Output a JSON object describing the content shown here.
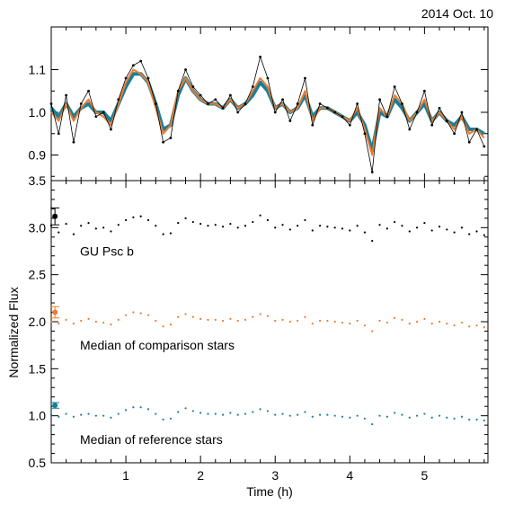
{
  "header": {
    "date_label": "2014 Oct. 10"
  },
  "colors": {
    "gu_psc_b": "#000000",
    "comparison": "#f07a2c",
    "reference": "#1a7f99",
    "axis": "#000000",
    "background": "#ffffff"
  },
  "chart_data": [
    {
      "panel": "top",
      "type": "line",
      "xlim": [
        0,
        5.85
      ],
      "ylim": [
        0.84,
        1.2
      ],
      "y_ticks": [
        0.9,
        1.0,
        1.1
      ],
      "y_tick_labels": [
        "0.9",
        "1.0",
        "1.1"
      ],
      "grid": false,
      "series": [
        {
          "name": "GU Psc b",
          "style": "thin line with point markers",
          "x": [
            0.0,
            0.1,
            0.2,
            0.3,
            0.4,
            0.5,
            0.6,
            0.7,
            0.8,
            0.9,
            1.0,
            1.1,
            1.2,
            1.3,
            1.4,
            1.5,
            1.6,
            1.7,
            1.8,
            1.9,
            2.0,
            2.1,
            2.2,
            2.3,
            2.4,
            2.5,
            2.6,
            2.7,
            2.8,
            2.9,
            3.0,
            3.1,
            3.2,
            3.3,
            3.4,
            3.5,
            3.6,
            3.7,
            3.8,
            3.9,
            4.0,
            4.1,
            4.2,
            4.3,
            4.4,
            4.5,
            4.6,
            4.7,
            4.8,
            4.9,
            5.0,
            5.1,
            5.2,
            5.3,
            5.4,
            5.5,
            5.6,
            5.7,
            5.8
          ],
          "y": [
            1.02,
            0.95,
            1.04,
            0.93,
            1.02,
            1.05,
            0.99,
            1.0,
            0.96,
            1.03,
            1.08,
            1.11,
            1.12,
            1.08,
            1.02,
            0.93,
            0.94,
            1.05,
            1.1,
            1.06,
            1.04,
            1.02,
            1.03,
            1.01,
            1.04,
            1.0,
            1.02,
            1.06,
            1.13,
            1.08,
            1.0,
            1.03,
            0.98,
            1.02,
            1.08,
            0.97,
            1.02,
            1.01,
            1.0,
            0.99,
            0.97,
            1.02,
            0.95,
            0.86,
            1.03,
            0.99,
            1.06,
            1.02,
            0.96,
            1.0,
            1.05,
            0.97,
            1.01,
            0.98,
            0.95,
            1.0,
            0.93,
            0.96,
            0.92
          ]
        },
        {
          "name": "Median of comparison stars",
          "style": "line",
          "x": [
            0.0,
            0.1,
            0.2,
            0.3,
            0.4,
            0.5,
            0.6,
            0.7,
            0.8,
            0.9,
            1.0,
            1.1,
            1.2,
            1.3,
            1.4,
            1.5,
            1.6,
            1.7,
            1.8,
            1.9,
            2.0,
            2.1,
            2.2,
            2.3,
            2.4,
            2.5,
            2.6,
            2.7,
            2.8,
            2.9,
            3.0,
            3.1,
            3.2,
            3.3,
            3.4,
            3.5,
            3.6,
            3.7,
            3.8,
            3.9,
            4.0,
            4.1,
            4.2,
            4.3,
            4.4,
            4.5,
            4.6,
            4.7,
            4.8,
            4.9,
            5.0,
            5.1,
            5.2,
            5.3,
            5.4,
            5.5,
            5.6,
            5.7,
            5.8
          ],
          "y": [
            1.0,
            0.98,
            1.02,
            0.98,
            1.01,
            1.03,
            1.0,
            0.99,
            0.97,
            1.02,
            1.07,
            1.1,
            1.09,
            1.07,
            1.01,
            0.95,
            0.97,
            1.05,
            1.08,
            1.05,
            1.03,
            1.02,
            1.02,
            1.01,
            1.03,
            1.01,
            1.02,
            1.05,
            1.08,
            1.06,
            1.01,
            1.02,
            1.0,
            1.01,
            1.05,
            0.98,
            1.01,
            1.01,
            1.0,
            0.99,
            0.98,
            1.01,
            0.96,
            0.9,
            1.01,
            0.99,
            1.04,
            1.02,
            0.98,
            1.0,
            1.03,
            0.98,
            1.0,
            0.98,
            0.96,
            0.99,
            0.95,
            0.96,
            0.94
          ]
        },
        {
          "name": "Median of reference stars",
          "style": "thick line",
          "x": [
            0.0,
            0.1,
            0.2,
            0.3,
            0.4,
            0.5,
            0.6,
            0.7,
            0.8,
            0.9,
            1.0,
            1.1,
            1.2,
            1.3,
            1.4,
            1.5,
            1.6,
            1.7,
            1.8,
            1.9,
            2.0,
            2.1,
            2.2,
            2.3,
            2.4,
            2.5,
            2.6,
            2.7,
            2.8,
            2.9,
            3.0,
            3.1,
            3.2,
            3.3,
            3.4,
            3.5,
            3.6,
            3.7,
            3.8,
            3.9,
            4.0,
            4.1,
            4.2,
            4.3,
            4.4,
            4.5,
            4.6,
            4.7,
            4.8,
            4.9,
            5.0,
            5.1,
            5.2,
            5.3,
            5.4,
            5.5,
            5.6,
            5.7,
            5.8
          ],
          "y": [
            1.01,
            0.99,
            1.02,
            0.99,
            1.01,
            1.02,
            1.0,
            1.0,
            0.98,
            1.02,
            1.06,
            1.09,
            1.09,
            1.07,
            1.02,
            0.96,
            0.97,
            1.04,
            1.08,
            1.05,
            1.03,
            1.02,
            1.02,
            1.01,
            1.03,
            1.01,
            1.02,
            1.04,
            1.07,
            1.05,
            1.01,
            1.02,
            1.0,
            1.01,
            1.04,
            0.99,
            1.01,
            1.01,
            1.0,
            0.99,
            0.98,
            1.0,
            0.97,
            0.91,
            1.0,
            0.99,
            1.03,
            1.01,
            0.98,
            1.0,
            1.02,
            0.98,
            1.0,
            0.98,
            0.97,
            0.99,
            0.96,
            0.96,
            0.95
          ]
        }
      ]
    },
    {
      "panel": "bottom",
      "type": "scatter",
      "xlabel": "Time (h)",
      "ylabel": "Normalized Flux",
      "xlim": [
        0,
        5.85
      ],
      "ylim": [
        0.5,
        3.5
      ],
      "x_ticks": [
        1,
        2,
        3,
        4,
        5
      ],
      "x_tick_labels": [
        "1",
        "2",
        "3",
        "4",
        "5"
      ],
      "y_ticks": [
        0.5,
        1.0,
        1.5,
        2.0,
        2.5,
        3.0,
        3.5
      ],
      "y_tick_labels": [
        "0.5",
        "1.0",
        "1.5",
        "2.0",
        "2.5",
        "3.0",
        "3.5"
      ],
      "grid": false,
      "series": [
        {
          "name": "GU Psc b",
          "offset": 2.0,
          "label": "GU Psc b",
          "error_point": {
            "x": 0.05,
            "y": 3.12,
            "err": 0.09
          },
          "base_series": "top.GU Psc b"
        },
        {
          "name": "Median of comparison stars",
          "offset": 1.0,
          "label": "Median of comparison stars",
          "error_point": {
            "x": 0.05,
            "y": 2.1,
            "err": 0.06
          },
          "base_series": "top.Median of comparison stars"
        },
        {
          "name": "Median of reference stars",
          "offset": 0.0,
          "label": "Median of reference stars",
          "error_point": {
            "x": 0.05,
            "y": 1.11,
            "err": 0.03
          },
          "base_series": "top.Median of reference stars"
        }
      ]
    }
  ]
}
